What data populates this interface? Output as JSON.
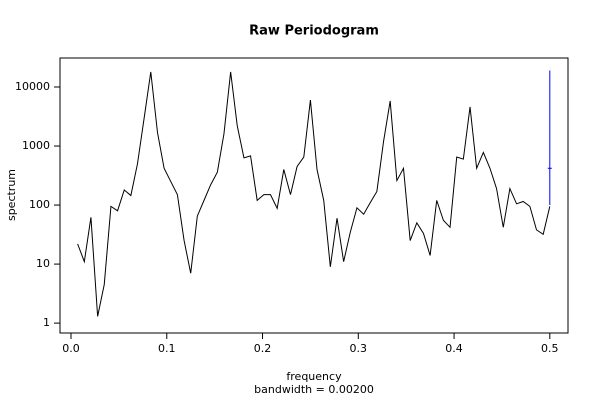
{
  "chart_data": {
    "type": "line",
    "title": "Raw Periodogram",
    "x_label": "frequency",
    "subtitle": "bandwidth = 0.00200",
    "y_label": "spectrum",
    "x": [
      0.0069,
      0.0139,
      0.0208,
      0.0278,
      0.0347,
      0.0417,
      0.0486,
      0.0556,
      0.0625,
      0.0694,
      0.0764,
      0.0833,
      0.0903,
      0.0972,
      0.1042,
      0.1111,
      0.1181,
      0.125,
      0.1319,
      0.1389,
      0.1458,
      0.1528,
      0.1597,
      0.1667,
      0.1736,
      0.1806,
      0.1875,
      0.1944,
      0.2014,
      0.2083,
      0.2153,
      0.2222,
      0.2292,
      0.2361,
      0.2431,
      0.25,
      0.2569,
      0.2639,
      0.2708,
      0.2778,
      0.2847,
      0.2917,
      0.2986,
      0.3056,
      0.3125,
      0.3194,
      0.3264,
      0.3333,
      0.3403,
      0.3472,
      0.3542,
      0.3611,
      0.3681,
      0.375,
      0.3819,
      0.3889,
      0.3958,
      0.4028,
      0.4097,
      0.4167,
      0.4236,
      0.4306,
      0.4375,
      0.4444,
      0.4514,
      0.4583,
      0.4653,
      0.4722,
      0.4792,
      0.4861,
      0.4931,
      0.5
    ],
    "series": [
      {
        "color": "#000000",
        "values": [
          22,
          11,
          62,
          1.3,
          4.5,
          95,
          80,
          180,
          145,
          500,
          3000,
          18000,
          1700,
          420,
          250,
          150,
          25,
          7,
          65,
          120,
          220,
          360,
          1600,
          18000,
          2200,
          630,
          680,
          120,
          150,
          150,
          88,
          400,
          150,
          450,
          650,
          6000,
          400,
          120,
          9,
          60,
          11,
          35,
          90,
          70,
          110,
          170,
          1200,
          5800,
          260,
          420,
          25,
          50,
          33,
          14,
          120,
          55,
          42,
          650,
          600,
          4600,
          420,
          780,
          420,
          190,
          42,
          190,
          105,
          115,
          95,
          38,
          32,
          95
        ]
      }
    ],
    "ci_bar": {
      "x": 0.5,
      "center": 420,
      "lower": 100,
      "upper": 19000,
      "color": "#0000ff"
    },
    "log_y": true,
    "xlim": [
      -0.0115,
      0.519
    ],
    "xticks": [
      {
        "value": 0,
        "label": "0.0"
      },
      0.1,
      0.2,
      0.3,
      0.4,
      0.5
    ],
    "ylim": [
      0.68,
      31000
    ],
    "yticks": [
      1,
      10,
      100,
      1000,
      10000
    ]
  }
}
